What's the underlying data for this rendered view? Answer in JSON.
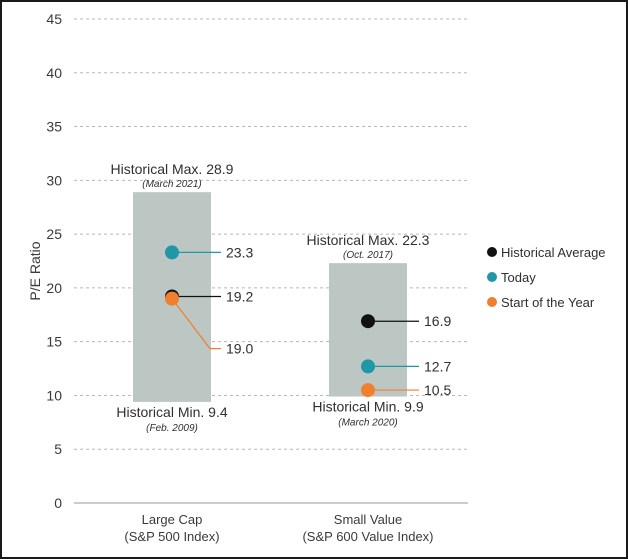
{
  "chart_data": {
    "type": "range-dot",
    "ylabel": "P/E Ratio",
    "ylim": [
      0,
      45
    ],
    "yticks": [
      0,
      5,
      10,
      15,
      20,
      25,
      30,
      35,
      40,
      45
    ],
    "grid": true,
    "legend_position": "right",
    "colors": {
      "range_bar": "#bcc7c3",
      "historical_average": "#111111",
      "today": "#1f97a6",
      "start_of_year": "#f07f2e"
    },
    "categories": [
      {
        "line1": "Large Cap",
        "line2": "(S&P 500 Index)",
        "max": 28.9,
        "max_label": "Historical Max. 28.9",
        "max_date": "(March 2021)",
        "min": 9.4,
        "min_label": "Historical Min. 9.4",
        "min_date": "(Feb. 2009)",
        "historical_average": 19.2,
        "today": 23.3,
        "start_of_year": 19.0,
        "avg_label": "19.2",
        "today_label": "23.3",
        "start_label": "19.0"
      },
      {
        "line1": "Small Value",
        "line2": "(S&P 600 Value Index)",
        "max": 22.3,
        "max_label": "Historical Max. 22.3",
        "max_date": "(Oct. 2017)",
        "min": 9.9,
        "min_label": "Historical Min. 9.9",
        "min_date": "(March 2020)",
        "historical_average": 16.9,
        "today": 12.7,
        "start_of_year": 10.5,
        "avg_label": "16.9",
        "today_label": "12.7",
        "start_label": "10.5"
      }
    ],
    "series": [
      {
        "key": "historical_average",
        "name": "Historical Average"
      },
      {
        "key": "today",
        "name": "Today"
      },
      {
        "key": "start_of_year",
        "name": "Start of the Year"
      }
    ]
  }
}
